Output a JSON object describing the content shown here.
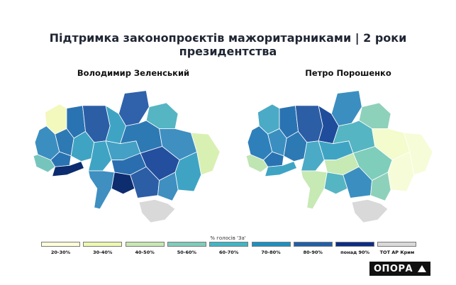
{
  "title": "Підтримка законопроєктів мажоритарниками | 2 роки президентства",
  "maps": {
    "left": {
      "label": "Володимир Зеленський",
      "regions": {
        "volyn": "#f3f8bd",
        "rivne": "#2a73b2",
        "lviv": "#3b8fc0",
        "zakarpattia": "#76c5bd",
        "ternopil": "#2d79b4",
        "ivano_frankivsk": "#2a73b2",
        "chernivtsi": "#0b2c6e",
        "khmelnytskyi": "#3fa4c4",
        "zhytomyr": "#2c5ea6",
        "kyiv_obl": "#3fa4c4",
        "chernihiv": "#2f62ab",
        "sumy": "#56b5c2",
        "vinnytsia": "#3fa4c4",
        "cherkasy": "#44a0c4",
        "poltava": "#2d79b4",
        "kharkiv": "#3f8fc1",
        "luhansk": "#d9f0b3",
        "kirovohrad": "#2a6eb0",
        "dnipro": "#234f9e",
        "donetsk": "#3fa4c4",
        "odesa": "#3f8fc1",
        "mykolaiv": "#0d2d6f",
        "kherson": "#2c5ea6",
        "zaporizhzhia": "#3f8fc1",
        "crimea": "#d9d9d9"
      }
    },
    "right": {
      "label": "Петро Порошенко",
      "regions": {
        "volyn": "#4baac6",
        "rivne": "#2a73b2",
        "lviv": "#2e80bb",
        "zakarpattia": "#bfe5b2",
        "ternopil": "#3b8fc0",
        "ivano_frankivsk": "#2a73b2",
        "chernivtsi": "#3fa4c4",
        "khmelnytskyi": "#2d79b4",
        "zhytomyr": "#2c5ea6",
        "kyiv_obl": "#1f4d9b",
        "chernihiv": "#3b8fc0",
        "sumy": "#8ed1bb",
        "vinnytsia": "#4baac6",
        "cherkasy": "#3fa4c4",
        "poltava": "#56b5c2",
        "kharkiv": "#f4fbcc",
        "luhansk": "#f7fcd8",
        "kirovohrad": "#c7e9b4",
        "dnipro": "#7fcdbb",
        "donetsk": "#f7fcd8",
        "odesa": "#c7e9b4",
        "mykolaiv": "#56b5c2",
        "kherson": "#3b8fc0",
        "zaporizhzhia": "#8ed1bb",
        "crimea": "#d9d9d9"
      }
    }
  },
  "legend": {
    "title": "% голосів 'За'",
    "items": [
      {
        "label": "20-30%",
        "color": "#ffffd9"
      },
      {
        "label": "30-40%",
        "color": "#edf8b1"
      },
      {
        "label": "40-50%",
        "color": "#c7e9b4"
      },
      {
        "label": "50-60%",
        "color": "#7fcdbb"
      },
      {
        "label": "60-70%",
        "color": "#41b6c4"
      },
      {
        "label": "70-80%",
        "color": "#1d91c0"
      },
      {
        "label": "80-90%",
        "color": "#225ea8"
      },
      {
        "label": "понад 90%",
        "color": "#0c2c84"
      },
      {
        "label": "ТОТ АР Крим",
        "color": "#d9d9d9"
      }
    ]
  },
  "logo": {
    "text": "ОПОРА"
  }
}
